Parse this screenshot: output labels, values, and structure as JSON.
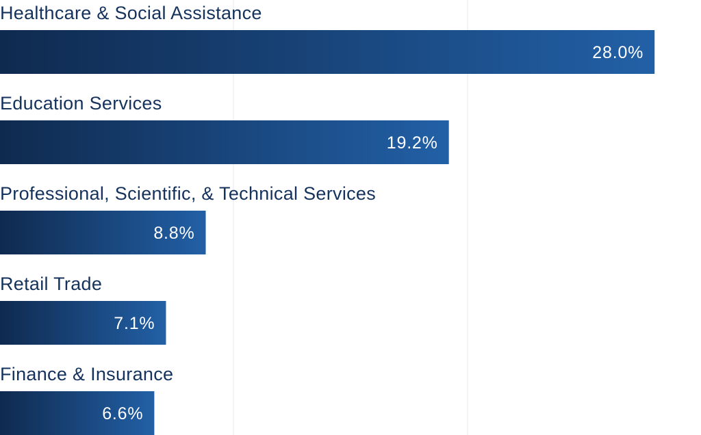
{
  "chart_data": {
    "type": "bar",
    "orientation": "horizontal",
    "title": "",
    "xlabel": "",
    "ylabel": "",
    "xlim": [
      0,
      30
    ],
    "grid": true,
    "categories": [
      "Healthcare & Social Assistance",
      "Education Services",
      "Professional, Scientific, & Technical Services",
      "Retail Trade",
      "Finance & Insurance"
    ],
    "values": [
      28.0,
      19.2,
      8.8,
      7.1,
      6.6
    ],
    "value_labels": [
      "28.0%",
      "19.2%",
      "8.8%",
      "7.1%",
      "6.6%"
    ],
    "colors": {
      "bar_start": "#0f2a4f",
      "bar_end": "#2260a6",
      "label_text": "#14325c",
      "value_text": "#ffffff",
      "grid": "#e6e9ee"
    }
  }
}
